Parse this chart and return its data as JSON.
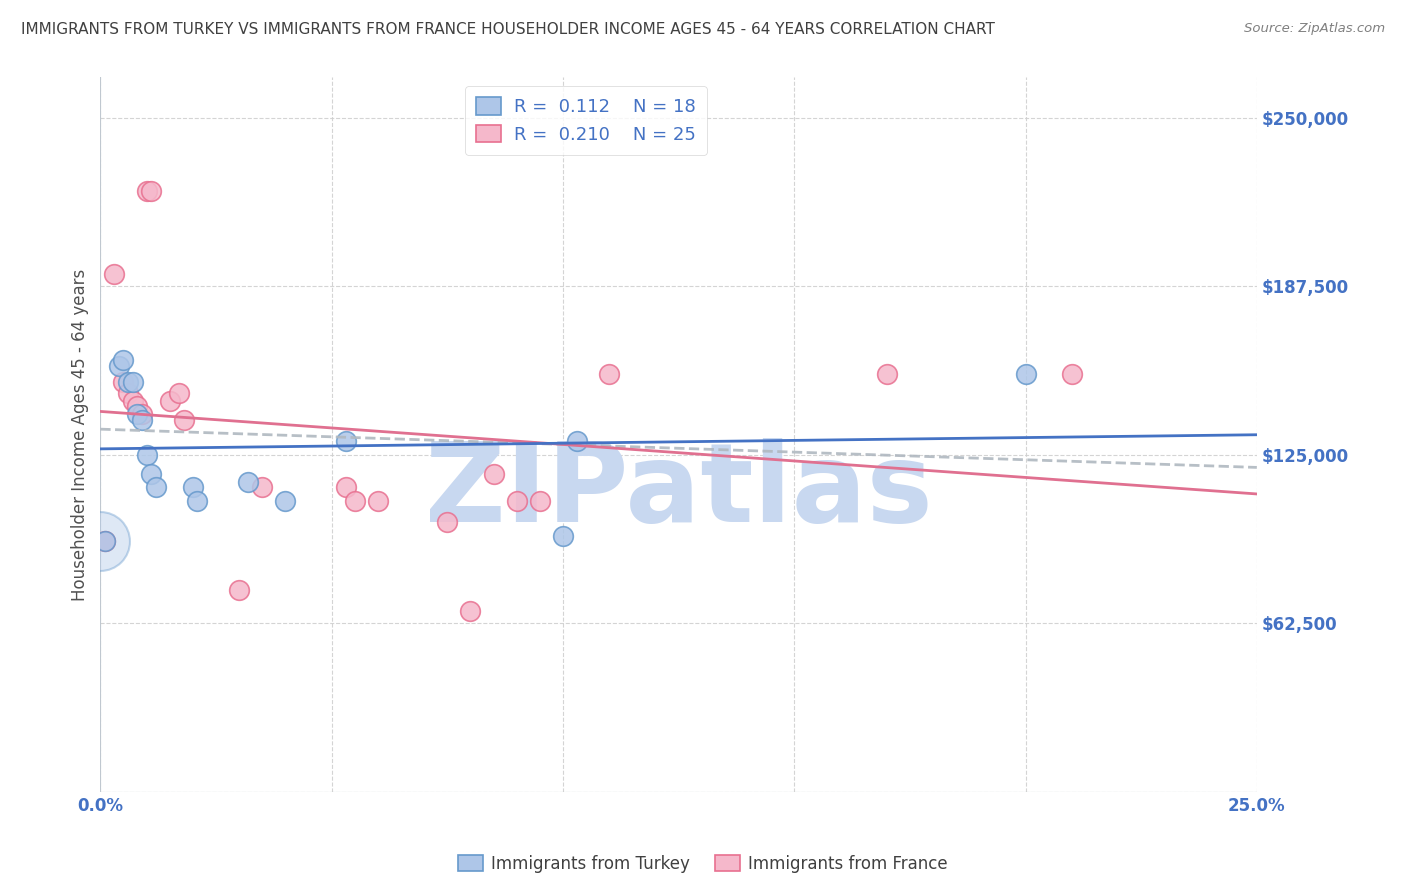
{
  "title": "IMMIGRANTS FROM TURKEY VS IMMIGRANTS FROM FRANCE HOUSEHOLDER INCOME AGES 45 - 64 YEARS CORRELATION CHART",
  "source": "Source: ZipAtlas.com",
  "ylabel": "Householder Income Ages 45 - 64 years",
  "yticks": [
    0,
    62500,
    125000,
    187500,
    250000
  ],
  "xmin": 0.0,
  "xmax": 0.25,
  "ymin": 0,
  "ymax": 265000,
  "turkey_color": "#aec6e8",
  "turkey_edge_color": "#6699cc",
  "france_color": "#f5b8cb",
  "france_edge_color": "#e87090",
  "turkey_line_color": "#4472c4",
  "france_line_color": "#e07090",
  "trend_line_color": "#b0b8c0",
  "R_turkey": 0.112,
  "N_turkey": 18,
  "R_france": 0.21,
  "N_france": 25,
  "legend_turkey_label": "Immigrants from Turkey",
  "legend_france_label": "Immigrants from France",
  "turkey_x": [
    0.001,
    0.004,
    0.005,
    0.006,
    0.007,
    0.008,
    0.009,
    0.01,
    0.011,
    0.012,
    0.02,
    0.021,
    0.032,
    0.04,
    0.053,
    0.1,
    0.103,
    0.2
  ],
  "turkey_y": [
    93000,
    158000,
    160000,
    152000,
    152000,
    140000,
    138000,
    125000,
    118000,
    113000,
    113000,
    108000,
    115000,
    108000,
    130000,
    95000,
    130000,
    155000
  ],
  "france_x": [
    0.001,
    0.003,
    0.005,
    0.006,
    0.007,
    0.008,
    0.009,
    0.01,
    0.011,
    0.015,
    0.017,
    0.018,
    0.03,
    0.035,
    0.053,
    0.055,
    0.06,
    0.075,
    0.08,
    0.085,
    0.09,
    0.095,
    0.11,
    0.17,
    0.21
  ],
  "france_y": [
    93000,
    192000,
    152000,
    148000,
    145000,
    143000,
    140000,
    223000,
    223000,
    145000,
    148000,
    138000,
    75000,
    113000,
    113000,
    108000,
    108000,
    100000,
    67000,
    118000,
    108000,
    108000,
    155000,
    155000,
    155000
  ],
  "background_color": "#ffffff",
  "grid_color": "#d0d0d0",
  "title_color": "#404040",
  "axis_label_color": "#4472c4",
  "watermark_text": "ZIPatlas",
  "watermark_color": "#c8d8f0",
  "marker_size": 200,
  "line_width": 2.0
}
